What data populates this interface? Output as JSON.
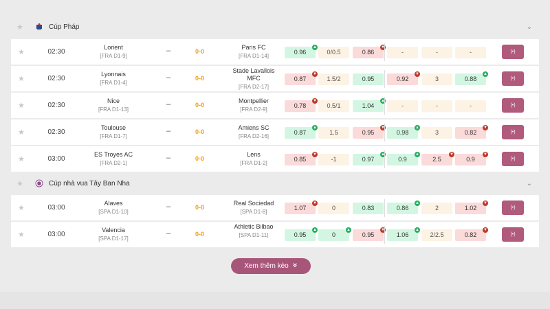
{
  "leagues": [
    {
      "name": "Cúp Pháp",
      "logo_icon": "french-cup-icon",
      "matches": [
        {
          "time": "02:30",
          "home": "Lorient",
          "home_info": "[FRA D1-9]",
          "dash": "–",
          "score": "0-0",
          "away": "Paris FC",
          "away_info": "[FRA D1-14]",
          "odds": [
            {
              "v": "0.96",
              "c": "g",
              "ind": "up"
            },
            {
              "v": "0/0.5",
              "c": "y",
              "ind": ""
            },
            {
              "v": "0.86",
              "c": "r",
              "ind": "down"
            },
            {
              "v": "-",
              "c": "y",
              "ind": ""
            },
            {
              "v": "-",
              "c": "y",
              "ind": ""
            },
            {
              "v": "-",
              "c": "y",
              "ind": ""
            }
          ]
        },
        {
          "time": "02:30",
          "home": "Lyonnais",
          "home_info": "[FRA D1-4]",
          "dash": "–",
          "score": "0-0",
          "away": "Stade Lavallois MFC",
          "away_info": "[FRA D2-17]",
          "odds": [
            {
              "v": "0.87",
              "c": "r",
              "ind": "down"
            },
            {
              "v": "1.5/2",
              "c": "y",
              "ind": ""
            },
            {
              "v": "0.95",
              "c": "g",
              "ind": ""
            },
            {
              "v": "0.92",
              "c": "r",
              "ind": "down"
            },
            {
              "v": "3",
              "c": "y",
              "ind": ""
            },
            {
              "v": "0.88",
              "c": "g",
              "ind": "up"
            }
          ]
        },
        {
          "time": "02:30",
          "home": "Nice",
          "home_info": "[FRA D1-13]",
          "dash": "–",
          "score": "0-0",
          "away": "Montpellier",
          "away_info": "[FRA D2-9]",
          "odds": [
            {
              "v": "0.78",
              "c": "r",
              "ind": "down"
            },
            {
              "v": "0.5/1",
              "c": "y",
              "ind": ""
            },
            {
              "v": "1.04",
              "c": "g",
              "ind": "up"
            },
            {
              "v": "-",
              "c": "y",
              "ind": ""
            },
            {
              "v": "-",
              "c": "y",
              "ind": ""
            },
            {
              "v": "-",
              "c": "y",
              "ind": ""
            }
          ]
        },
        {
          "time": "02:30",
          "home": "Toulouse",
          "home_info": "[FRA D1-7]",
          "dash": "–",
          "score": "0-0",
          "away": "Amiens SC",
          "away_info": "[FRA D2-16]",
          "odds": [
            {
              "v": "0.87",
              "c": "g",
              "ind": "up"
            },
            {
              "v": "1.5",
              "c": "y",
              "ind": ""
            },
            {
              "v": "0.95",
              "c": "r",
              "ind": "down"
            },
            {
              "v": "0.98",
              "c": "g",
              "ind": "up"
            },
            {
              "v": "3",
              "c": "y",
              "ind": ""
            },
            {
              "v": "0.82",
              "c": "r",
              "ind": "down"
            }
          ]
        },
        {
          "time": "03:00",
          "home": "ES Troyes AC",
          "home_info": "[FRA D2-1]",
          "dash": "–",
          "score": "0-0",
          "away": "Lens",
          "away_info": "[FRA D1-2]",
          "odds": [
            {
              "v": "0.85",
              "c": "r",
              "ind": "down"
            },
            {
              "v": "-1",
              "c": "y",
              "ind": ""
            },
            {
              "v": "0.97",
              "c": "g",
              "ind": "up"
            },
            {
              "v": "0.9",
              "c": "g",
              "ind": "up"
            },
            {
              "v": "2.5",
              "c": "r",
              "ind": "down"
            },
            {
              "v": "0.9",
              "c": "r",
              "ind": "down"
            }
          ]
        }
      ]
    },
    {
      "name": "Cúp nhà vua Tây Ban Nha",
      "logo_icon": "copa-del-rey-icon",
      "matches": [
        {
          "time": "03:00",
          "home": "Alaves",
          "home_info": "[SPA D1-10]",
          "dash": "–",
          "score": "0-0",
          "away": "Real Sociedad",
          "away_info": "[SPA D1-8]",
          "odds": [
            {
              "v": "1.07",
              "c": "r",
              "ind": "down"
            },
            {
              "v": "0",
              "c": "y",
              "ind": ""
            },
            {
              "v": "0.83",
              "c": "g",
              "ind": ""
            },
            {
              "v": "0.86",
              "c": "g",
              "ind": "up"
            },
            {
              "v": "2",
              "c": "y",
              "ind": ""
            },
            {
              "v": "1.02",
              "c": "r",
              "ind": "down"
            }
          ]
        },
        {
          "time": "03:00",
          "home": "Valencia",
          "home_info": "[SPA D1-17]",
          "dash": "–",
          "score": "0-0",
          "away": "Athletic Bilbao",
          "away_info": "[SPA D1-11]",
          "odds": [
            {
              "v": "0.95",
              "c": "g",
              "ind": "up"
            },
            {
              "v": "0",
              "c": "g",
              "ind": "up"
            },
            {
              "v": "0.95",
              "c": "r",
              "ind": "down"
            },
            {
              "v": "1.06",
              "c": "g",
              "ind": "up"
            },
            {
              "v": "2/2.5",
              "c": "y",
              "ind": ""
            },
            {
              "v": "0.82",
              "c": "r",
              "ind": "down"
            }
          ]
        }
      ]
    }
  ],
  "live_button_label": "(•)",
  "more_button": {
    "label": "Xem thêm kèo",
    "icon": "double-chevron-down-icon"
  },
  "colors": {
    "accent": "#a8557a",
    "odds_green": "#d3f6e2",
    "odds_red": "#fbdada",
    "odds_neutral": "#fdf3e4",
    "score": "#f39c12"
  }
}
